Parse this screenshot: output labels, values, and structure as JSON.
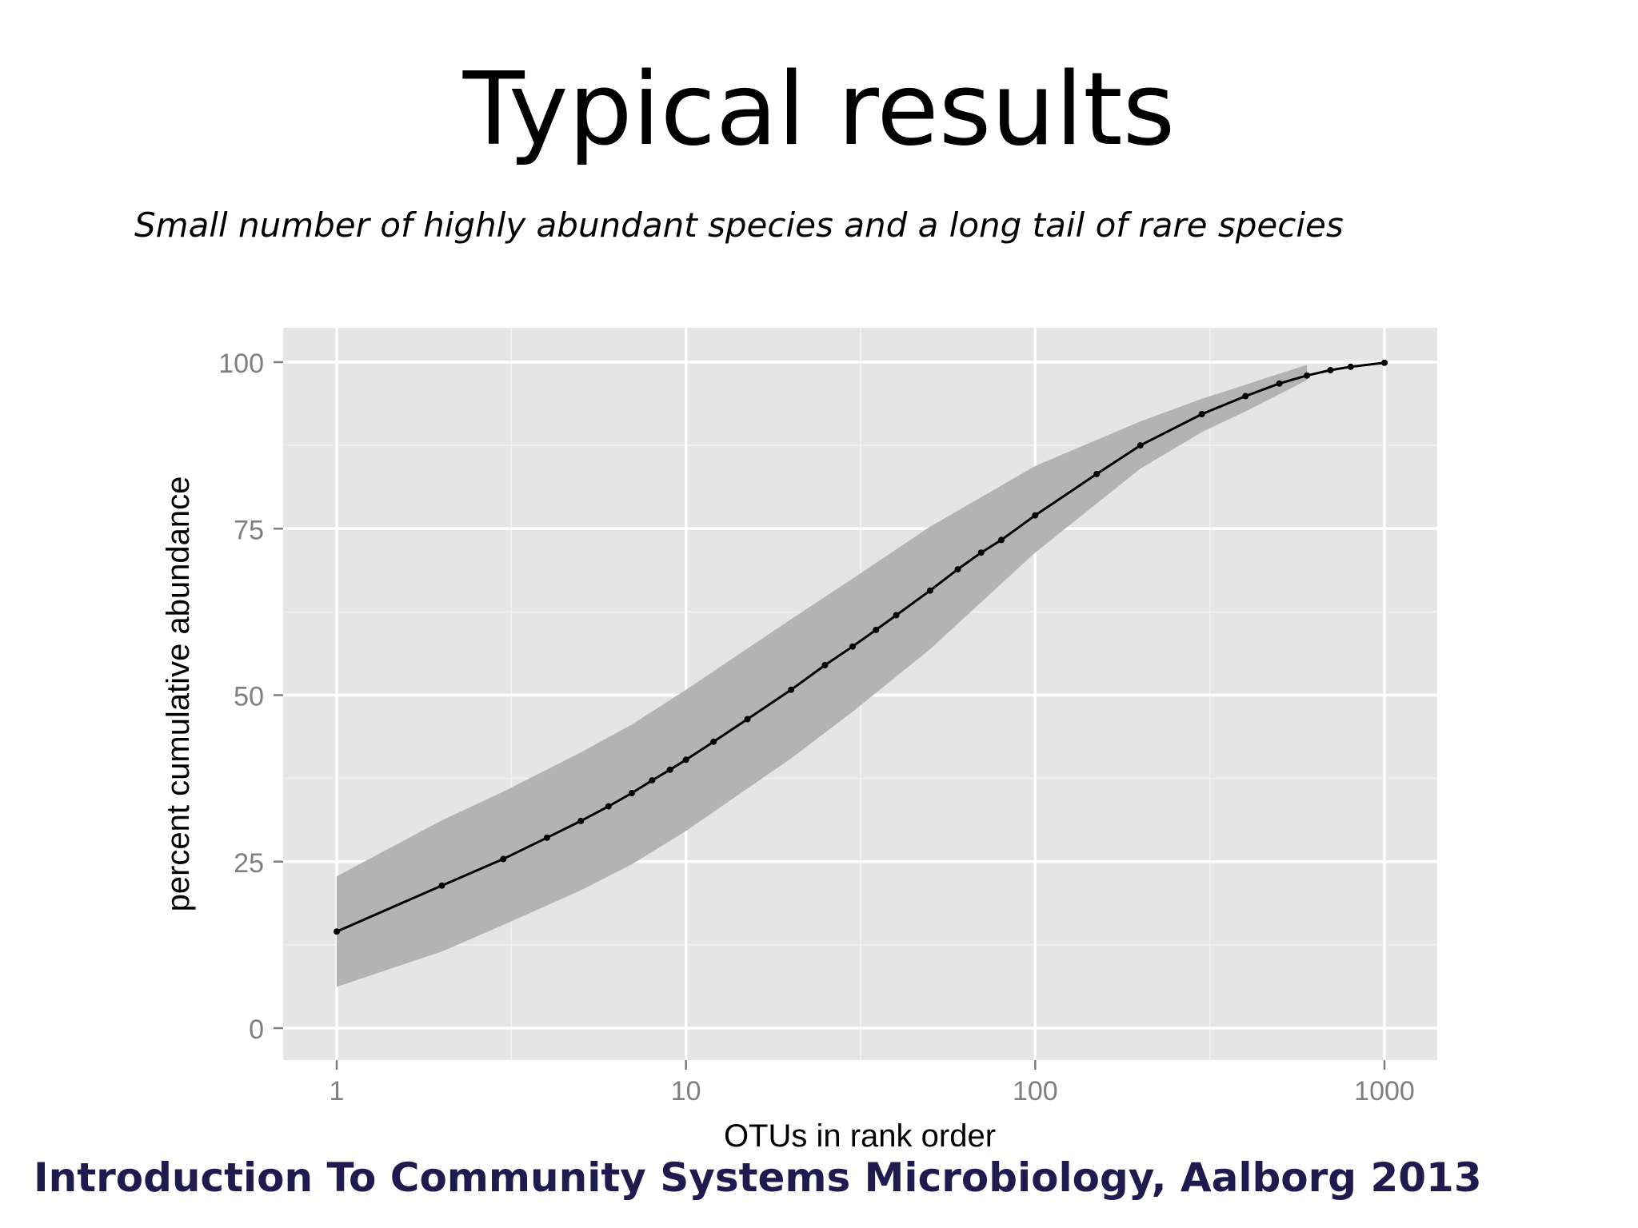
{
  "slide": {
    "title": "Typical results",
    "subtitle": "Small number of highly abundant species and a long tail of rare species",
    "footer": "Introduction To Community Systems Microbiology, Aalborg 2013"
  },
  "colors": {
    "panel_background": "#e5e5e5",
    "grid_major": "#ffffff",
    "grid_minor": "#f2f2f2",
    "ribbon": "#b3b3b3",
    "line": "#000000",
    "tick_label": "#7f7f7f",
    "axis_title": "#000000",
    "footer": "#1e1c4e"
  },
  "chart_data": {
    "type": "line",
    "xlabel": "OTUs in rank order",
    "ylabel": "percent cumulative abundance",
    "x_scale": "log10",
    "xlim": [
      0.7,
      1400
    ],
    "ylim": [
      -5,
      105
    ],
    "x_ticks": [
      1,
      10,
      100,
      1000
    ],
    "x_tick_labels": [
      "1",
      "10",
      "100",
      "1000"
    ],
    "y_ticks": [
      0,
      25,
      50,
      75,
      100
    ],
    "y_tick_labels": [
      "0",
      "25",
      "50",
      "75",
      "100"
    ],
    "grid": true,
    "legend": "none",
    "series": [
      {
        "x": [
          1,
          2,
          3,
          4,
          5,
          6,
          7,
          8,
          9,
          10,
          12,
          15,
          20,
          25,
          30,
          35,
          40,
          50,
          60,
          70,
          80,
          100,
          150,
          200,
          300,
          400,
          500,
          600,
          700,
          800,
          1000
        ],
        "y": [
          14.5,
          21.4,
          25.4,
          28.6,
          31.1,
          33.3,
          35.3,
          37.2,
          38.8,
          40.3,
          43.0,
          46.4,
          50.8,
          54.5,
          57.3,
          59.8,
          62.0,
          65.7,
          68.9,
          71.4,
          73.3,
          77.0,
          83.2,
          87.5,
          92.2,
          94.9,
          96.8,
          98.0,
          98.8,
          99.3,
          99.9
        ],
        "ribbon_x": [
          1,
          2,
          3,
          5,
          7,
          10,
          20,
          30,
          50,
          100,
          200,
          300,
          400,
          600
        ],
        "ribbon_lower": [
          6.2,
          11.5,
          15.5,
          20.7,
          24.6,
          29.6,
          40.5,
          47.5,
          56.9,
          71.4,
          84.0,
          89.5,
          92.6,
          97.3
        ],
        "ribbon_upper": [
          22.8,
          31.2,
          35.5,
          41.4,
          45.6,
          50.8,
          61.4,
          67.5,
          75.3,
          84.4,
          91.1,
          94.5,
          96.6,
          99.6
        ]
      }
    ]
  }
}
